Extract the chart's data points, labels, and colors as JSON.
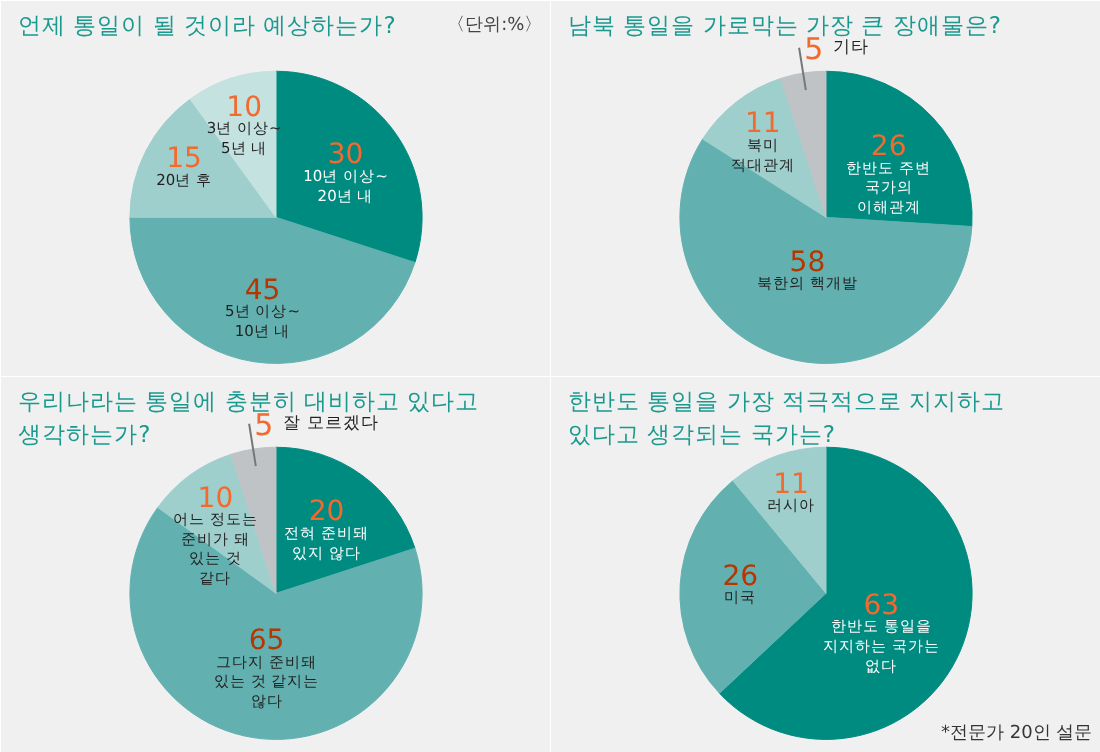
{
  "chart_data": [
    {
      "type": "pie",
      "title": "언제 통일이 될 것이라 예상하는가?",
      "categories": [
        "10년 이상~ 20년 내",
        "5년 이상~ 10년 내",
        "20년 후",
        "3년 이상~ 5년 내"
      ],
      "values": [
        30,
        45,
        15,
        10
      ],
      "colors": [
        "#008b80",
        "#62b1b0",
        "#9fcfcd",
        "#c4e2e0"
      ],
      "data_labels": true,
      "annotations": [
        "〈단위:%〉"
      ]
    },
    {
      "type": "pie",
      "title": "남북 통일을 가로막는 가장 큰 장애물은?",
      "categories": [
        "한반도 주변 국가의 이해관계",
        "북한의 핵개발",
        "북미 적대관계",
        "기타"
      ],
      "values": [
        26,
        58,
        11,
        5
      ],
      "colors": [
        "#008b80",
        "#62b1b0",
        "#9fcfcd",
        "#c0c3c5"
      ],
      "data_labels": true
    },
    {
      "type": "pie",
      "title": "우리나라는 통일에 충분히 대비하고 있다고 생각하는가?",
      "categories": [
        "전혀 준비돼 있지 않다",
        "그다지 준비돼 있는 것 같지는 않다",
        "어느 정도는 준비가 돼 있는 것 같다",
        "잘 모르겠다"
      ],
      "values": [
        20,
        65,
        10,
        5
      ],
      "colors": [
        "#008b80",
        "#62b1b0",
        "#9fcfcd",
        "#c0c3c5"
      ],
      "data_labels": true
    },
    {
      "type": "pie",
      "title": "한반도 통일을 가장 적극적으로 지지하고 있다고 생각되는 국가는?",
      "categories": [
        "한반도 통일을 지지하는 국가는 없다",
        "미국",
        "러시아"
      ],
      "values": [
        63,
        26,
        11
      ],
      "colors": [
        "#008b80",
        "#62b1b0",
        "#9fcfcd"
      ],
      "data_labels": true,
      "annotations": [
        "*전문가 20인 설문"
      ]
    }
  ]
}
